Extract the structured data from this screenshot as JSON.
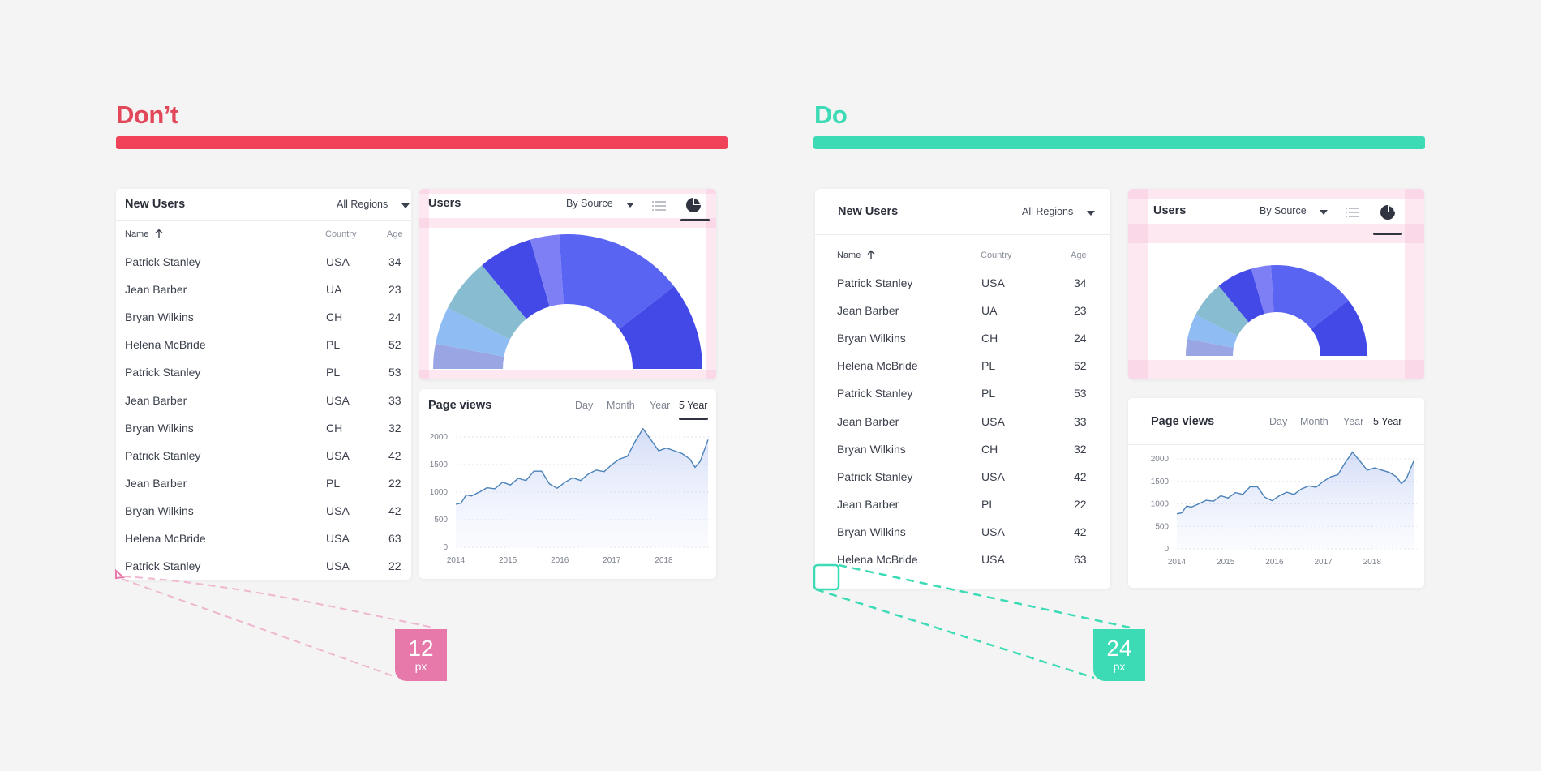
{
  "dont": {
    "heading": "Don’t",
    "spacing": {
      "value": "12",
      "unit": "px"
    },
    "new_users": {
      "title": "New Users",
      "filter": "All Regions",
      "columns": [
        "Name",
        "Country",
        "Age"
      ],
      "rows": [
        [
          "Patrick Stanley",
          "USA",
          "34"
        ],
        [
          "Jean Barber",
          "UA",
          "23"
        ],
        [
          "Bryan Wilkins",
          "CH",
          "24"
        ],
        [
          "Helena McBride",
          "PL",
          "52"
        ],
        [
          "Patrick Stanley",
          "PL",
          "53"
        ],
        [
          "Jean Barber",
          "USA",
          "33"
        ],
        [
          "Bryan Wilkins",
          "CH",
          "32"
        ],
        [
          "Patrick Stanley",
          "USA",
          "42"
        ],
        [
          "Jean Barber",
          "PL",
          "22"
        ],
        [
          "Bryan Wilkins",
          "USA",
          "42"
        ],
        [
          "Helena McBride",
          "USA",
          "63"
        ],
        [
          "Patrick Stanley",
          "USA",
          "22"
        ]
      ]
    },
    "users": {
      "title": "Users",
      "filter": "By Source"
    },
    "page_views": {
      "title": "Page views",
      "tabs": [
        "Day",
        "Month",
        "Year",
        "5 Year"
      ],
      "active_tab": "5 Year"
    }
  },
  "do": {
    "heading": "Do",
    "spacing": {
      "value": "24",
      "unit": "px"
    },
    "new_users": {
      "title": "New Users",
      "filter": "All Regions",
      "columns": [
        "Name",
        "Country",
        "Age"
      ],
      "rows": [
        [
          "Patrick Stanley",
          "USA",
          "34"
        ],
        [
          "Jean Barber",
          "UA",
          "23"
        ],
        [
          "Bryan Wilkins",
          "CH",
          "24"
        ],
        [
          "Helena McBride",
          "PL",
          "52"
        ],
        [
          "Patrick Stanley",
          "PL",
          "53"
        ],
        [
          "Jean Barber",
          "USA",
          "33"
        ],
        [
          "Bryan Wilkins",
          "CH",
          "32"
        ],
        [
          "Patrick Stanley",
          "USA",
          "42"
        ],
        [
          "Jean Barber",
          "PL",
          "22"
        ],
        [
          "Bryan Wilkins",
          "USA",
          "42"
        ],
        [
          "Helena McBride",
          "USA",
          "63"
        ]
      ]
    },
    "users": {
      "title": "Users",
      "filter": "By Source"
    },
    "page_views": {
      "title": "Page views",
      "tabs": [
        "Day",
        "Month",
        "Year",
        "5 Year"
      ],
      "active_tab": "5 Year"
    }
  },
  "colors": {
    "dont_accent": "#f0435a",
    "do_accent": "#3ddbb5",
    "dont_badge": "#e678aa",
    "do_badge": "#3ddbb5",
    "pink_overlay": "#f9b6d4"
  },
  "icons": {
    "list": "list-view-icon",
    "pie": "pie-chart-icon",
    "sort": "sort-ascending-icon",
    "dropdown": "caret-down-icon"
  },
  "chart_data": [
    {
      "type": "pie",
      "variant": "half-donut",
      "title": "Users",
      "slices": [
        {
          "value": 6,
          "color": "#9aa6e3"
        },
        {
          "value": 9,
          "color": "#8fbdf3"
        },
        {
          "value": 13,
          "color": "#88bcd0"
        },
        {
          "value": 13,
          "color": "#4349e6"
        },
        {
          "value": 7,
          "color": "#7f7ff5"
        },
        {
          "value": 31,
          "color": "#5a64f2"
        },
        {
          "value": 21,
          "color": "#4349e6"
        }
      ]
    },
    {
      "type": "area",
      "title": "Page views",
      "x_ticks": [
        "2014",
        "2015",
        "2016",
        "2017",
        "2018"
      ],
      "y_ticks": [
        0,
        500,
        1000,
        1500,
        2000
      ],
      "ylim": [
        0,
        2000
      ],
      "xlim": [
        2014,
        2018.85
      ],
      "grid": true,
      "x": [
        2014.0,
        2014.1,
        2014.2,
        2014.3,
        2014.45,
        2014.6,
        2014.75,
        2014.9,
        2015.05,
        2015.2,
        2015.35,
        2015.5,
        2015.65,
        2015.8,
        2015.95,
        2016.1,
        2016.25,
        2016.4,
        2016.55,
        2016.7,
        2016.85,
        2017.0,
        2017.15,
        2017.3,
        2017.45,
        2017.6,
        2017.75,
        2017.9,
        2018.05,
        2018.2,
        2018.35,
        2018.5,
        2018.6,
        2018.7,
        2018.85
      ],
      "y": [
        780,
        800,
        950,
        930,
        1000,
        1080,
        1060,
        1180,
        1130,
        1250,
        1210,
        1380,
        1380,
        1150,
        1070,
        1180,
        1260,
        1210,
        1330,
        1400,
        1370,
        1500,
        1600,
        1650,
        1920,
        2150,
        1950,
        1750,
        1800,
        1750,
        1700,
        1600,
        1450,
        1560,
        1950
      ]
    }
  ]
}
